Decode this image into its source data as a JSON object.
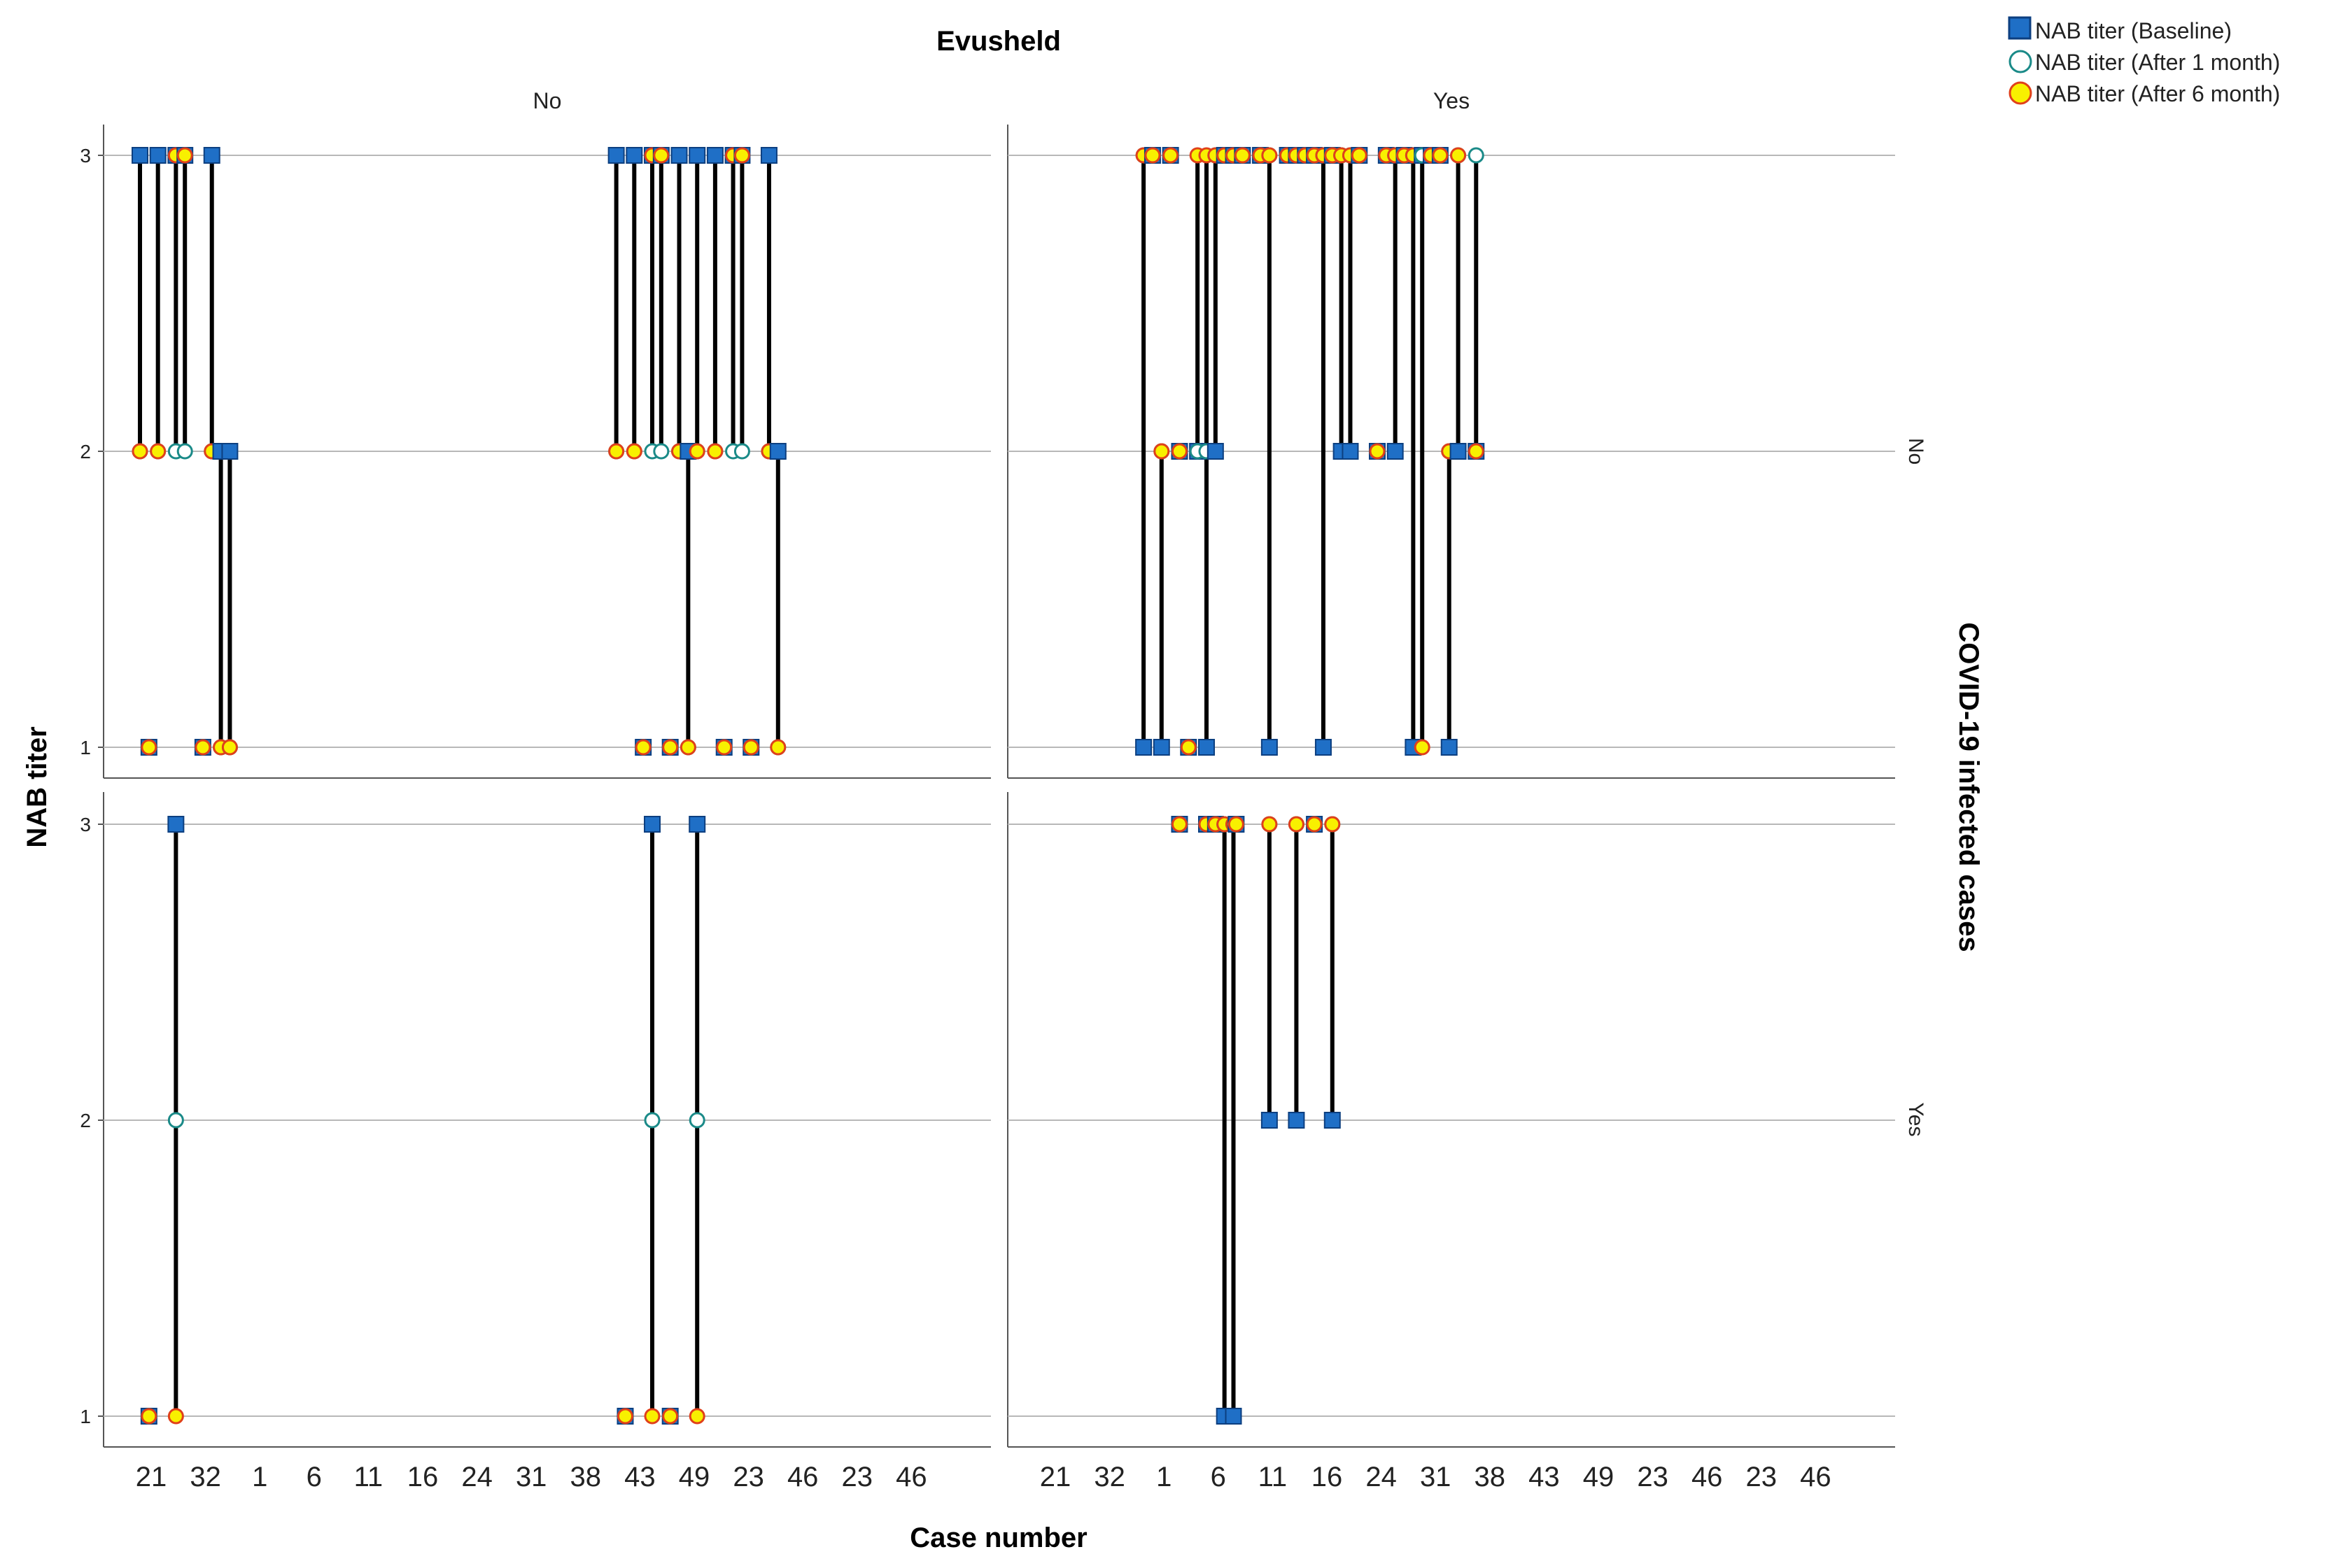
{
  "chart_data": {
    "type": "scatter",
    "title": "Evusheld",
    "xlabel": "Case number",
    "ylabel": "NAB titer",
    "row_facet_title": "COVID-19 infected cases",
    "column_facets": [
      "No",
      "Yes"
    ],
    "row_facets": [
      "No",
      "Yes"
    ],
    "ylim": [
      1,
      3
    ],
    "yticks": [
      1,
      2,
      3
    ],
    "x_tick_labels_col_no": [
      "21",
      "32",
      "1",
      "6",
      "11",
      "16",
      "24",
      "31",
      "38",
      "43",
      "49",
      "23",
      "46",
      "23",
      "46"
    ],
    "x_tick_labels_col_yes": [
      "21",
      "32",
      "1",
      "6",
      "11",
      "16",
      "24",
      "31",
      "38",
      "43",
      "49",
      "23",
      "46",
      "23",
      "46"
    ],
    "x_positions": 96,
    "legend": [
      {
        "key": "baseline",
        "label": "NAB titer (Baseline)",
        "color": "#1f6fc6",
        "edge": "#0c3f80",
        "shape": "square"
      },
      {
        "key": "m1",
        "label": "NAB titer (After 1 month)",
        "color": "#ffffff",
        "edge": "#1a8a88",
        "shape": "circle"
      },
      {
        "key": "m6",
        "label": "NAB titer (After 6 month)",
        "color": "#f8f000",
        "edge": "#e0401a",
        "shape": "circle"
      }
    ],
    "panels": [
      {
        "col": "No",
        "row": "No",
        "cases": [
          {
            "x": 1,
            "baseline": 3,
            "m1": 2,
            "m6": 2
          },
          {
            "x": 2,
            "baseline": 1,
            "m1": 1,
            "m6": 1
          },
          {
            "x": 3,
            "baseline": 3,
            "m1": 2,
            "m6": 2
          },
          {
            "x": 5,
            "baseline": 3,
            "m1": 2,
            "m6": 3
          },
          {
            "x": 6,
            "baseline": 3,
            "m1": 2,
            "m6": 3
          },
          {
            "x": 8,
            "baseline": 1,
            "m1": 1,
            "m6": 1
          },
          {
            "x": 9,
            "baseline": 3,
            "m1": 2,
            "m6": 2
          },
          {
            "x": 10,
            "baseline": 2,
            "m1": 1,
            "m6": 1
          },
          {
            "x": 11,
            "baseline": 2,
            "m1": 1,
            "m6": 1
          },
          {
            "x": 54,
            "baseline": 3,
            "m1": 2,
            "m6": 2
          },
          {
            "x": 56,
            "baseline": 3,
            "m1": 2,
            "m6": 2
          },
          {
            "x": 57,
            "baseline": 1,
            "m1": 1,
            "m6": 1
          },
          {
            "x": 58,
            "baseline": 3,
            "m1": 2,
            "m6": 3
          },
          {
            "x": 59,
            "baseline": 3,
            "m1": 2,
            "m6": 3
          },
          {
            "x": 60,
            "baseline": 1,
            "m1": 1,
            "m6": 1
          },
          {
            "x": 61,
            "baseline": 3,
            "m1": 2,
            "m6": 2
          },
          {
            "x": 62,
            "baseline": 2,
            "m1": 1,
            "m6": 1
          },
          {
            "x": 63,
            "baseline": 3,
            "m1": 2,
            "m6": 2
          },
          {
            "x": 65,
            "baseline": 3,
            "m1": 2,
            "m6": 2
          },
          {
            "x": 66,
            "baseline": 1,
            "m1": 1,
            "m6": 1
          },
          {
            "x": 67,
            "baseline": 3,
            "m1": 2,
            "m6": 3
          },
          {
            "x": 68,
            "baseline": 3,
            "m1": 2,
            "m6": 3
          },
          {
            "x": 69,
            "baseline": 1,
            "m1": 1,
            "m6": 1
          },
          {
            "x": 71,
            "baseline": 3,
            "m1": 2,
            "m6": 2
          },
          {
            "x": 72,
            "baseline": 2,
            "m1": 1,
            "m6": 1
          }
        ]
      },
      {
        "col": "Yes",
        "row": "No",
        "cases": [
          {
            "x": 13,
            "baseline": 1,
            "m1": 3,
            "m6": 3
          },
          {
            "x": 14,
            "baseline": 3,
            "m1": 3,
            "m6": 3
          },
          {
            "x": 15,
            "baseline": 1,
            "m1": 2,
            "m6": 2
          },
          {
            "x": 16,
            "baseline": 3,
            "m1": 3,
            "m6": 3
          },
          {
            "x": 17,
            "baseline": 2,
            "m1": 2,
            "m6": 2
          },
          {
            "x": 18,
            "baseline": 1,
            "m1": 1,
            "m6": 1
          },
          {
            "x": 19,
            "baseline": 2,
            "m1": 2,
            "m6": 3
          },
          {
            "x": 20,
            "baseline": 1,
            "m1": 2,
            "m6": 3
          },
          {
            "x": 21,
            "baseline": 2,
            "m1": 3,
            "m6": 3
          },
          {
            "x": 22,
            "baseline": 3,
            "m1": 3,
            "m6": 3
          },
          {
            "x": 23,
            "baseline": 3,
            "m1": 3,
            "m6": 3
          },
          {
            "x": 24,
            "baseline": 3,
            "m1": 3,
            "m6": 3
          },
          {
            "x": 26,
            "baseline": 3,
            "m1": 3,
            "m6": 3
          },
          {
            "x": 27,
            "baseline": 1,
            "m1": 3,
            "m6": 3
          },
          {
            "x": 29,
            "baseline": 3,
            "m1": 3,
            "m6": 3
          },
          {
            "x": 30,
            "baseline": 3,
            "m1": 3,
            "m6": 3
          },
          {
            "x": 31,
            "baseline": 3,
            "m1": 3,
            "m6": 3
          },
          {
            "x": 32,
            "baseline": 3,
            "m1": 3,
            "m6": 3
          },
          {
            "x": 33,
            "baseline": 1,
            "m1": 3,
            "m6": 3
          },
          {
            "x": 34,
            "baseline": 3,
            "m1": 3,
            "m6": 3
          },
          {
            "x": 35,
            "baseline": 2,
            "m1": 3,
            "m6": 3
          },
          {
            "x": 36,
            "baseline": 2,
            "m1": 3,
            "m6": 3
          },
          {
            "x": 37,
            "baseline": 3,
            "m1": 3,
            "m6": 3
          },
          {
            "x": 39,
            "baseline": 2,
            "m1": 2,
            "m6": 2
          },
          {
            "x": 40,
            "baseline": 3,
            "m1": 3,
            "m6": 3
          },
          {
            "x": 41,
            "baseline": 2,
            "m1": 3,
            "m6": 3
          },
          {
            "x": 42,
            "baseline": 3,
            "m1": 3,
            "m6": 3
          },
          {
            "x": 43,
            "baseline": 1,
            "m1": 3,
            "m6": 3
          },
          {
            "x": 44,
            "baseline": 3,
            "m1": 3,
            "m6": 1
          },
          {
            "x": 45,
            "baseline": 3,
            "m1": 3,
            "m6": 3
          },
          {
            "x": 46,
            "baseline": 3,
            "m1": 3,
            "m6": 3
          },
          {
            "x": 47,
            "baseline": 1,
            "m1": 2,
            "m6": 2
          },
          {
            "x": 48,
            "baseline": 2,
            "m1": 3,
            "m6": 3
          },
          {
            "x": 50,
            "baseline": 2,
            "m1": 3,
            "m6": 2
          }
        ]
      },
      {
        "col": "No",
        "row": "Yes",
        "cases": [
          {
            "x": 2,
            "baseline": 1,
            "m1": 1,
            "m6": 1
          },
          {
            "x": 5,
            "baseline": 3,
            "m1": 2,
            "m6": 1
          },
          {
            "x": 55,
            "baseline": 1,
            "m1": 1,
            "m6": 1
          },
          {
            "x": 58,
            "baseline": 3,
            "m1": 2,
            "m6": 1
          },
          {
            "x": 60,
            "baseline": 1,
            "m1": 1,
            "m6": 1
          },
          {
            "x": 63,
            "baseline": 3,
            "m1": 2,
            "m6": 1
          }
        ]
      },
      {
        "col": "Yes",
        "row": "Yes",
        "cases": [
          {
            "x": 17,
            "baseline": 3,
            "m1": 3,
            "m6": 3
          },
          {
            "x": 20,
            "baseline": 3,
            "m1": 3,
            "m6": 3
          },
          {
            "x": 21,
            "baseline": 3,
            "m1": 3,
            "m6": 3
          },
          {
            "x": 22,
            "baseline": 1,
            "m1": 3,
            "m6": 3
          },
          {
            "x": 23,
            "baseline": 1,
            "m1": 3,
            "m6": 3
          },
          {
            "x": 23.3,
            "baseline": 3,
            "m1": 3,
            "m6": 3
          },
          {
            "x": 27,
            "baseline": 2,
            "m1": 3,
            "m6": 3
          },
          {
            "x": 30,
            "baseline": 2,
            "m1": 3,
            "m6": 3
          },
          {
            "x": 32,
            "baseline": 3,
            "m1": 3,
            "m6": 3
          },
          {
            "x": 34,
            "baseline": 2,
            "m1": 3,
            "m6": 3
          }
        ]
      }
    ]
  }
}
